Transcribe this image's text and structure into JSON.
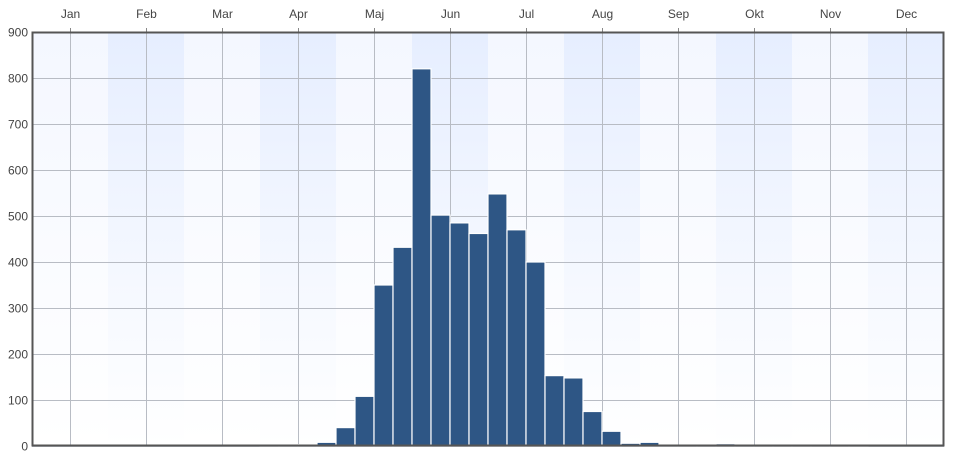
{
  "chart_data": {
    "type": "bar",
    "title": "",
    "xlabel": "",
    "ylabel": "",
    "months": [
      "Jan",
      "Feb",
      "Mar",
      "Apr",
      "Maj",
      "Jun",
      "Jul",
      "Aug",
      "Sep",
      "Okt",
      "Nov",
      "Dec"
    ],
    "ylim": [
      0,
      900
    ],
    "yticks": [
      0,
      100,
      200,
      300,
      400,
      500,
      600,
      700,
      800,
      900
    ],
    "bars_per_month": 4,
    "values": [
      0,
      0,
      0,
      0,
      0,
      0,
      0,
      0,
      0,
      0,
      0,
      0,
      3,
      1,
      3,
      8,
      40,
      108,
      350,
      432,
      820,
      502,
      485,
      462,
      548,
      470,
      400,
      153,
      148,
      75,
      32,
      6,
      8,
      2,
      1,
      4,
      5,
      1,
      1,
      1,
      3,
      1,
      1,
      1,
      0,
      0,
      0,
      0
    ],
    "grid": true,
    "colors": {
      "bar": "#2e5685",
      "bar_edge": "#ffffff",
      "grid": "#b8bcc4",
      "frame": "#555555",
      "band_light": "#ffffff",
      "band_dark": "#e6eeff"
    }
  }
}
